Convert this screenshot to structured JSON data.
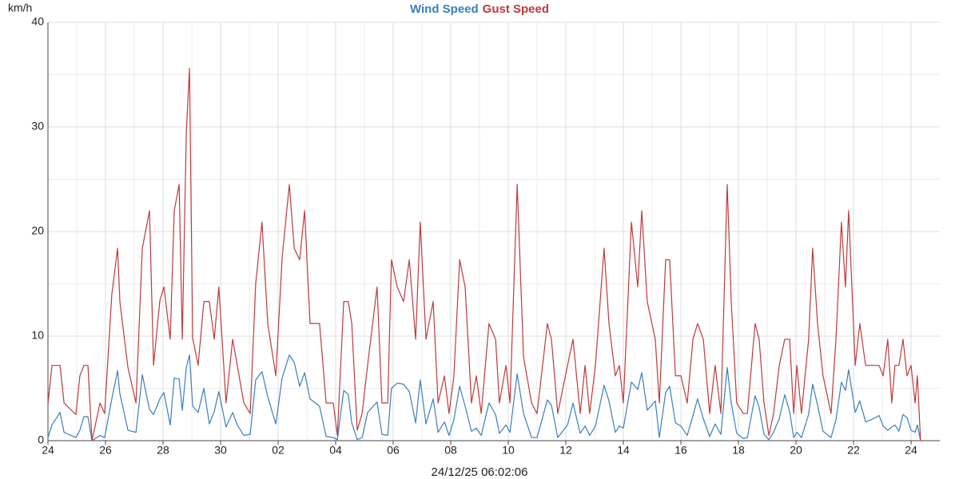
{
  "chart_data": {
    "type": "line",
    "y_label": "km/h",
    "x_label": "24/12/25 06:02:06",
    "x": [
      0,
      0.14,
      0.42,
      0.56,
      0.97,
      1.11,
      1.25,
      1.39,
      1.53,
      1.81,
      1.97,
      2.22,
      2.42,
      2.5,
      2.78,
      3.06,
      3.28,
      3.53,
      3.67,
      3.89,
      4.03,
      4.25,
      4.39,
      4.56,
      4.67,
      4.81,
      4.92,
      5.03,
      5.22,
      5.42,
      5.61,
      5.78,
      5.94,
      6.19,
      6.42,
      6.58,
      6.81,
      7.03,
      7.22,
      7.44,
      7.64,
      7.92,
      8.14,
      8.39,
      8.56,
      8.75,
      8.92,
      9.11,
      9.44,
      9.67,
      9.92,
      10.06,
      10.28,
      10.44,
      10.56,
      10.75,
      10.92,
      11.11,
      11.44,
      11.61,
      11.81,
      11.94,
      12.14,
      12.36,
      12.56,
      12.78,
      12.94,
      13.14,
      13.39,
      13.56,
      13.78,
      13.94,
      14.11,
      14.31,
      14.5,
      14.72,
      14.89,
      15.06,
      15.33,
      15.56,
      15.69,
      15.92,
      16.06,
      16.31,
      16.53,
      16.81,
      17,
      17.36,
      17.5,
      17.72,
      18.06,
      18.25,
      18.5,
      18.67,
      18.83,
      19.03,
      19.33,
      19.5,
      19.72,
      19.86,
      20,
      20.28,
      20.5,
      20.64,
      20.83,
      21.11,
      21.25,
      21.47,
      21.61,
      21.81,
      22,
      22.22,
      22.42,
      22.58,
      22.78,
      23,
      23.19,
      23.39,
      23.61,
      23.75,
      23.94,
      24.17,
      24.31,
      24.58,
      24.72,
      24.89,
      25.06,
      25.22,
      25.42,
      25.61,
      25.78,
      25.92,
      26.03,
      26.19,
      26.44,
      26.58,
      26.75,
      26.94,
      27.22,
      27.39,
      27.58,
      27.72,
      27.83,
      28.06,
      28.22,
      28.42,
      28.61,
      28.89,
      29.03,
      29.19,
      29.33,
      29.44,
      29.58,
      29.72,
      29.86,
      30,
      30.14,
      30.22,
      30.33
    ],
    "series": [
      {
        "name": "Wind Speed",
        "color": "#3a7ebf",
        "values": [
          0.3,
          1.5,
          2.7,
          0.8,
          0.3,
          1,
          2.3,
          2.3,
          0,
          0.5,
          0.3,
          4,
          6.7,
          4.5,
          1,
          0.8,
          6.3,
          3,
          2.5,
          4,
          4.6,
          1.5,
          6,
          5.9,
          2.9,
          7,
          8.2,
          3.3,
          2.7,
          5,
          1.6,
          2.8,
          4.7,
          1.3,
          2.7,
          1.5,
          0.5,
          0.6,
          5.8,
          6.6,
          4.2,
          1.6,
          6,
          8.2,
          7.5,
          5.2,
          6.5,
          4,
          3.3,
          0.4,
          0.3,
          0.1,
          4.8,
          4.4,
          1.7,
          0.1,
          0.3,
          2.7,
          3.7,
          0.6,
          0.5,
          5,
          5.5,
          5.4,
          4.7,
          1.7,
          5.8,
          1.6,
          4,
          0.8,
          1.8,
          0.5,
          2,
          5.2,
          3.3,
          0.9,
          1.2,
          0.5,
          3.6,
          2.5,
          0.7,
          1.5,
          0.8,
          6.4,
          2.6,
          0.3,
          0.3,
          3.9,
          3.4,
          0.3,
          1.5,
          3.6,
          0.7,
          1.4,
          0.5,
          1.4,
          5.3,
          3.8,
          0.8,
          1.4,
          1.2,
          5.6,
          4.9,
          6.5,
          2.9,
          3.8,
          0.3,
          4.6,
          5.2,
          1.7,
          1.4,
          0.5,
          2.4,
          4,
          2.1,
          0.4,
          1.6,
          0.6,
          7,
          3.6,
          0.7,
          0.2,
          0.3,
          4.3,
          3.2,
          0.6,
          0.1,
          0.8,
          2.1,
          4.4,
          2.8,
          0.3,
          0.8,
          0.3,
          2.5,
          5.4,
          3.4,
          0.9,
          0.3,
          2,
          5.6,
          4.8,
          6.8,
          2.7,
          3.8,
          1.8,
          2,
          2.4,
          1.4,
          1,
          1.3,
          1.5,
          0.9,
          2.5,
          2.2,
          1,
          0.8,
          1.5,
          0
        ]
      },
      {
        "name": "Gust Speed",
        "color": "#c0393b",
        "values": [
          3.5,
          7.2,
          7.2,
          3.6,
          2.5,
          6.2,
          7.2,
          7.2,
          0,
          3.6,
          2.6,
          14,
          18.4,
          13.3,
          7,
          3.6,
          18.4,
          22,
          7.2,
          13.4,
          14.7,
          9.7,
          22,
          24.5,
          9.7,
          29.5,
          35.6,
          9.8,
          7.2,
          13.3,
          13.3,
          9.7,
          14.7,
          3.6,
          9.7,
          7.2,
          3.6,
          2.6,
          15,
          20.9,
          11.2,
          6.2,
          17.5,
          24.5,
          18.4,
          17.3,
          22,
          11.2,
          11.2,
          3.6,
          3.6,
          0.5,
          13.3,
          13.3,
          11.2,
          1,
          2.6,
          7.2,
          14.7,
          3.6,
          3.6,
          17.3,
          14.7,
          13.3,
          17.3,
          9.7,
          20.9,
          9.7,
          13.3,
          3.6,
          6.2,
          2.6,
          6.2,
          17.3,
          14.7,
          3.6,
          6.2,
          2.6,
          11.2,
          9.7,
          3.6,
          7.2,
          3.6,
          24.5,
          8,
          3.6,
          2.6,
          11.2,
          9.7,
          2.6,
          7.2,
          9.7,
          2.6,
          7.2,
          2.6,
          7.2,
          18.4,
          11.2,
          6.2,
          7.2,
          3.6,
          20.9,
          14.7,
          22,
          13.3,
          9.7,
          3.6,
          17.3,
          17.3,
          6.2,
          6.2,
          3.6,
          9.7,
          11.2,
          9.7,
          2.6,
          7.2,
          2.6,
          24.5,
          13.3,
          3.6,
          2.6,
          2.6,
          11.2,
          9.7,
          3.6,
          0.5,
          2.6,
          7.2,
          9.7,
          9.7,
          2.6,
          7.2,
          2.6,
          9.7,
          18.4,
          11.2,
          6.2,
          2.6,
          9.7,
          20.9,
          14.7,
          22,
          7.2,
          11.2,
          7.2,
          7.2,
          7.2,
          6.2,
          9.7,
          3.6,
          7.2,
          7.2,
          9.7,
          6.2,
          7.2,
          3.6,
          6.2,
          0
        ]
      }
    ],
    "xlim": [
      0,
      31
    ],
    "xticks": [
      {
        "value": 0,
        "label": "24"
      },
      {
        "value": 2,
        "label": "26"
      },
      {
        "value": 4,
        "label": "28"
      },
      {
        "value": 6,
        "label": "30"
      },
      {
        "value": 8,
        "label": "02"
      },
      {
        "value": 10,
        "label": "04"
      },
      {
        "value": 12,
        "label": "06"
      },
      {
        "value": 14,
        "label": "08"
      },
      {
        "value": 16,
        "label": "10"
      },
      {
        "value": 18,
        "label": "12"
      },
      {
        "value": 20,
        "label": "14"
      },
      {
        "value": 22,
        "label": "16"
      },
      {
        "value": 24,
        "label": "18"
      },
      {
        "value": 26,
        "label": "20"
      },
      {
        "value": 28,
        "label": "22"
      },
      {
        "value": 30,
        "label": "24"
      }
    ],
    "ylim": [
      0,
      40
    ],
    "yticks": [
      0,
      10,
      20,
      30,
      40
    ],
    "grid": true,
    "minor_grid": true,
    "legend": "top"
  }
}
